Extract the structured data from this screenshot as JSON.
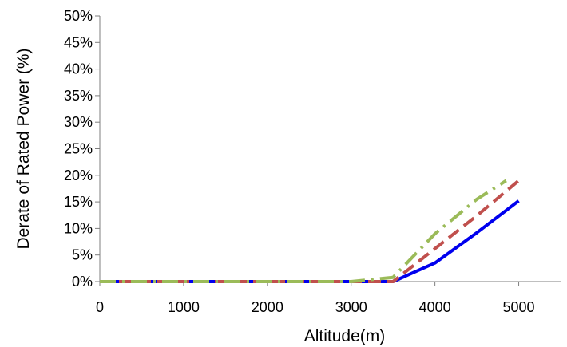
{
  "chart_data": {
    "type": "line",
    "title": "",
    "xlabel": "Altitude(m)",
    "ylabel": "Derate of Rated Power (%)",
    "xlim": [
      0,
      5500
    ],
    "ylim": [
      0,
      50
    ],
    "xticks": [
      0,
      1000,
      2000,
      3000,
      4000,
      5000
    ],
    "xtick_labels": [
      "0",
      "1000",
      "2000",
      "3000",
      "4000",
      "5000"
    ],
    "yticks": [
      0,
      5,
      10,
      15,
      20,
      25,
      30,
      35,
      40,
      45,
      50
    ],
    "ytick_labels": [
      "0%",
      "5%",
      "10%",
      "15%",
      "20%",
      "25%",
      "30%",
      "35%",
      "40%",
      "45%",
      "50%"
    ],
    "grid": false,
    "legend": "none",
    "series": [
      {
        "color": "#0000ee",
        "style": "solid",
        "x": [
          0,
          3500,
          4000,
          4500,
          5000
        ],
        "y": [
          0,
          0,
          3.5,
          9.2,
          15.2
        ]
      },
      {
        "color": "#c0504d",
        "style": "dashed",
        "x": [
          0,
          3500,
          4000,
          4500,
          5000
        ],
        "y": [
          0,
          0,
          6.2,
          12.4,
          19.0
        ]
      },
      {
        "color": "#9bbb59",
        "style": "dash-dot",
        "x": [
          0,
          3000,
          3500,
          4000,
          4500,
          4850
        ],
        "y": [
          0,
          0,
          0.8,
          9.0,
          15.5,
          19.0
        ]
      }
    ]
  }
}
